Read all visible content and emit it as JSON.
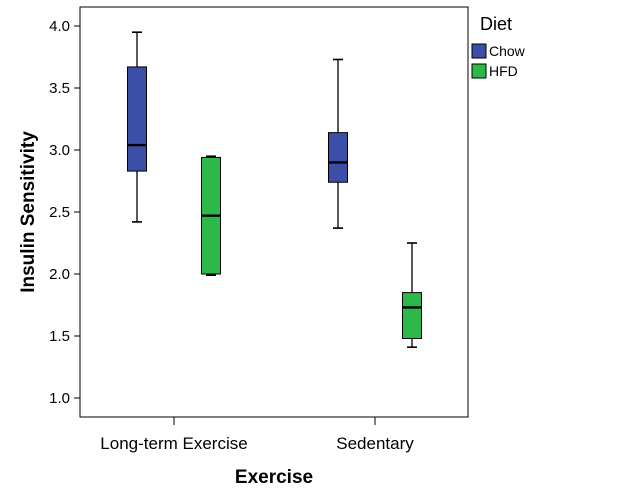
{
  "chart_data": {
    "type": "boxplot",
    "title": "",
    "xlabel": "Exercise",
    "ylabel": "Insulin Sensitivity",
    "ylim": [
      0.8,
      4.2
    ],
    "yticks": [
      "1.0",
      "1.5",
      "2.0",
      "2.5",
      "3.0",
      "3.5",
      "4.0"
    ],
    "ytick_values": [
      1.0,
      1.5,
      2.0,
      2.5,
      3.0,
      3.5,
      4.0
    ],
    "categories": [
      "Long-term Exercise",
      "Sedentary"
    ],
    "legend": {
      "title": "Diet",
      "position": "top-right-outside",
      "entries": [
        {
          "name": "Chow",
          "color": "#3c4fa8"
        },
        {
          "name": "HFD",
          "color": "#2db84a"
        }
      ]
    },
    "series": [
      {
        "name": "Chow",
        "color": "#3c4fa8",
        "boxes": [
          {
            "category": "Long-term Exercise",
            "min": 2.42,
            "q1": 2.83,
            "median": 3.04,
            "q3": 3.67,
            "max": 3.95
          },
          {
            "category": "Sedentary",
            "min": 2.37,
            "q1": 2.74,
            "median": 2.9,
            "q3": 3.14,
            "max": 3.73
          }
        ]
      },
      {
        "name": "HFD",
        "color": "#2db84a",
        "boxes": [
          {
            "category": "Long-term Exercise",
            "min": 1.99,
            "q1": 2.0,
            "median": 2.47,
            "q3": 2.94,
            "max": 2.95
          },
          {
            "category": "Sedentary",
            "min": 1.41,
            "q1": 1.48,
            "median": 1.73,
            "q3": 1.85,
            "max": 2.25
          }
        ]
      }
    ]
  }
}
